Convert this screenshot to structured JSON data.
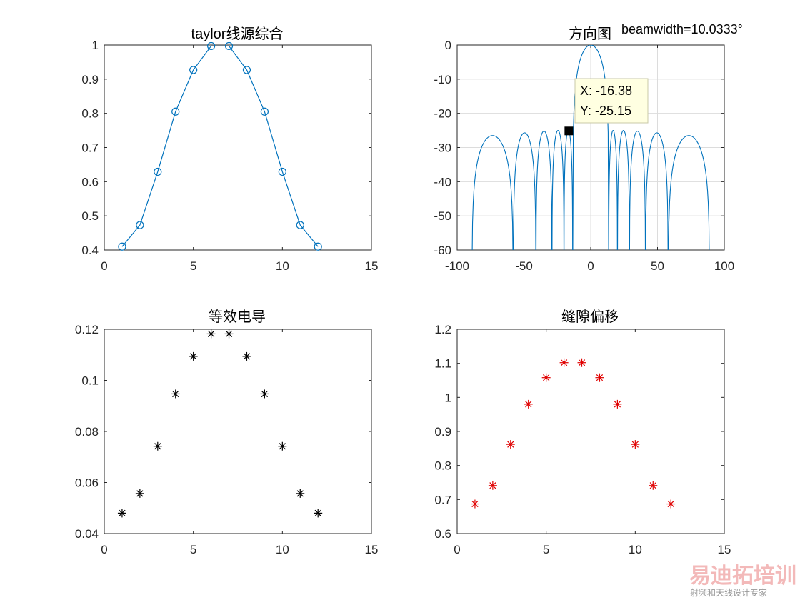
{
  "annotation": "beamwidth=10.0333°",
  "datatip": {
    "x_text": "X: -16.38",
    "y_text": "Y: -25.15",
    "x": -16.38,
    "y": -25.15
  },
  "watermark": {
    "main": "易迪拓培训",
    "sub": "射频和天线设计专家"
  },
  "colors": {
    "blue": "#0072BD",
    "black": "#000000",
    "red": "#E00000",
    "axis": "#262626",
    "grid": "#dcdcdc",
    "datatip_bg": "#FFFFE1"
  },
  "chart_data": [
    {
      "type": "line",
      "title": "taylor线源综合",
      "marker": "circle",
      "x": [
        1,
        2,
        3,
        4,
        5,
        6,
        7,
        8,
        9,
        10,
        11,
        12
      ],
      "y": [
        0.41,
        0.473,
        0.629,
        0.805,
        0.927,
        0.997,
        0.997,
        0.927,
        0.805,
        0.629,
        0.473,
        0.41
      ],
      "xlim": [
        0,
        15
      ],
      "ylim": [
        0.4,
        1
      ],
      "xticks": [
        "0",
        "5",
        "10",
        "15"
      ],
      "yticks": [
        "0.4",
        "0.5",
        "0.6",
        "0.7",
        "0.8",
        "0.9",
        "1"
      ],
      "grid": false
    },
    {
      "type": "line",
      "title": "方向图",
      "xlim": [
        -100,
        100
      ],
      "ylim": [
        -60,
        0
      ],
      "xticks": [
        "-100",
        "-50",
        "0",
        "50",
        "100"
      ],
      "yticks": [
        "-60",
        "-50",
        "-40",
        "-30",
        "-20",
        "-10",
        "0"
      ],
      "grid": true,
      "nulls": [
        -89,
        -58,
        -41,
        -29,
        -20,
        -13.5,
        13.5,
        20,
        29,
        41,
        58,
        89
      ],
      "lobe_peaks": [
        -26.5,
        -25.7,
        -25.2,
        -25.0,
        -25.0,
        0,
        -25.0,
        -25.0,
        -25.2,
        -25.7,
        -26.5
      ]
    },
    {
      "type": "scatter",
      "title": "等效电导",
      "marker": "asterisk",
      "x": [
        1,
        2,
        3,
        4,
        5,
        6,
        7,
        8,
        9,
        10,
        11,
        12
      ],
      "y": [
        0.048,
        0.0557,
        0.0742,
        0.0947,
        0.1094,
        0.1182,
        0.1182,
        0.1094,
        0.0947,
        0.0742,
        0.0557,
        0.048
      ],
      "xlim": [
        0,
        15
      ],
      "ylim": [
        0.04,
        0.12
      ],
      "xticks": [
        "0",
        "5",
        "10",
        "15"
      ],
      "yticks": [
        "0.04",
        "0.06",
        "0.08",
        "0.1",
        "0.12"
      ],
      "grid": false
    },
    {
      "type": "scatter",
      "title": "缝隙偏移",
      "marker": "asterisk",
      "x": [
        1,
        2,
        3,
        4,
        5,
        6,
        7,
        8,
        9,
        10,
        11,
        12
      ],
      "y": [
        0.687,
        0.741,
        0.862,
        0.98,
        1.058,
        1.102,
        1.102,
        1.058,
        0.98,
        0.862,
        0.741,
        0.687
      ],
      "xlim": [
        0,
        15
      ],
      "ylim": [
        0.6,
        1.2
      ],
      "xticks": [
        "0",
        "5",
        "10",
        "15"
      ],
      "yticks": [
        "0.6",
        "0.7",
        "0.8",
        "0.9",
        "1",
        "1.1",
        "1.2"
      ],
      "grid": false
    }
  ]
}
